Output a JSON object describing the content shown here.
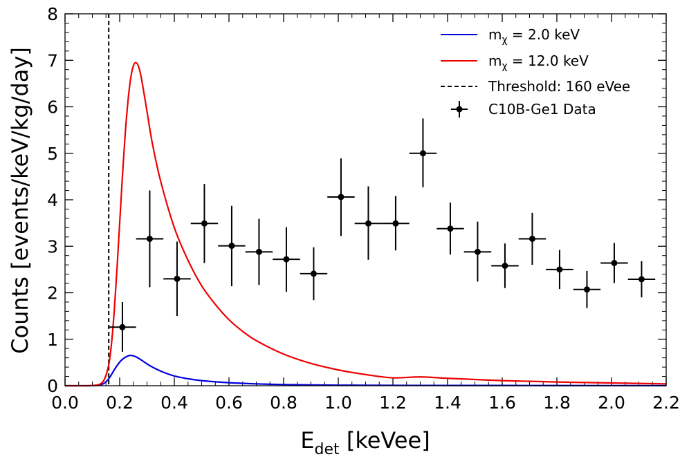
{
  "chart_data": {
    "type": "line",
    "xlabel": {
      "main": "E",
      "sub": "det",
      "rest": " [keVee]"
    },
    "ylabel": "Counts [events/keV/kg/day]",
    "xlim": [
      0.0,
      2.2
    ],
    "ylim": [
      0,
      8
    ],
    "x_ticks": [
      "0.0",
      "0.2",
      "0.4",
      "0.6",
      "0.8",
      "1.0",
      "1.2",
      "1.4",
      "1.6",
      "1.8",
      "2.0",
      "2.2"
    ],
    "y_ticks": [
      "0",
      "1",
      "2",
      "3",
      "4",
      "5",
      "6",
      "7",
      "8"
    ],
    "threshold": {
      "x": 0.16,
      "label": "Threshold: 160 eVee",
      "color": "#000000"
    },
    "series": [
      {
        "name": "mχ = 2.0 keV",
        "legend_main": "m",
        "legend_sub": "χ",
        "legend_rest": " = 2.0 keV",
        "color": "#0000dd",
        "x": [
          0.0,
          0.08,
          0.11,
          0.13,
          0.145,
          0.16,
          0.175,
          0.19,
          0.205,
          0.22,
          0.235,
          0.245,
          0.26,
          0.28,
          0.3,
          0.33,
          0.36,
          0.4,
          0.45,
          0.5,
          0.6,
          0.7,
          0.8,
          1.0,
          1.2,
          1.4,
          1.6,
          2.0,
          2.2
        ],
        "y": [
          0,
          0,
          0.005,
          0.02,
          0.06,
          0.15,
          0.29,
          0.43,
          0.54,
          0.61,
          0.65,
          0.65,
          0.62,
          0.55,
          0.47,
          0.37,
          0.29,
          0.21,
          0.15,
          0.11,
          0.065,
          0.04,
          0.025,
          0.012,
          0.008,
          0.006,
          0.005,
          0.003,
          0.002
        ]
      },
      {
        "name": "mχ = 12.0 keV",
        "legend_main": "m",
        "legend_sub": "χ",
        "legend_rest": " = 12.0 keV",
        "color": "#ee0000",
        "x": [
          0.0,
          0.08,
          0.11,
          0.13,
          0.145,
          0.16,
          0.17,
          0.18,
          0.19,
          0.2,
          0.21,
          0.22,
          0.23,
          0.24,
          0.25,
          0.26,
          0.27,
          0.28,
          0.3,
          0.32,
          0.35,
          0.4,
          0.45,
          0.5,
          0.55,
          0.6,
          0.65,
          0.7,
          0.8,
          0.9,
          1.0,
          1.1,
          1.2,
          1.3,
          1.4,
          1.6,
          1.8,
          2.0,
          2.2
        ],
        "y": [
          0,
          0,
          0.01,
          0.04,
          0.15,
          0.45,
          0.9,
          1.6,
          2.5,
          3.5,
          4.5,
          5.4,
          6.1,
          6.6,
          6.88,
          6.95,
          6.85,
          6.6,
          5.9,
          5.2,
          4.4,
          3.4,
          2.7,
          2.15,
          1.75,
          1.42,
          1.17,
          0.97,
          0.68,
          0.48,
          0.34,
          0.24,
          0.17,
          0.19,
          0.16,
          0.11,
          0.08,
          0.06,
          0.04
        ]
      }
    ],
    "data_points": {
      "name": "C10B-Ge1 Data",
      "color": "#000000",
      "x": [
        0.21,
        0.31,
        0.41,
        0.51,
        0.61,
        0.71,
        0.81,
        0.91,
        1.01,
        1.11,
        1.21,
        1.31,
        1.41,
        1.51,
        1.61,
        1.71,
        1.81,
        1.91,
        2.01,
        2.11
      ],
      "y": [
        1.26,
        3.16,
        2.3,
        3.49,
        3.01,
        2.88,
        2.72,
        2.41,
        4.06,
        3.49,
        3.49,
        5.0,
        3.38,
        2.88,
        2.58,
        3.16,
        2.5,
        2.07,
        2.64,
        2.29
      ],
      "yerr_low": [
        0.53,
        1.04,
        0.8,
        0.85,
        0.87,
        0.71,
        0.7,
        0.57,
        0.84,
        0.78,
        0.58,
        0.73,
        0.56,
        0.64,
        0.48,
        0.56,
        0.42,
        0.4,
        0.43,
        0.39
      ],
      "yerr_high": [
        0.54,
        1.04,
        0.8,
        0.85,
        0.86,
        0.71,
        0.69,
        0.57,
        0.83,
        0.8,
        0.59,
        0.75,
        0.56,
        0.65,
        0.48,
        0.56,
        0.42,
        0.4,
        0.43,
        0.39
      ],
      "xerr": 0.05
    },
    "legend_position": "top-right"
  }
}
